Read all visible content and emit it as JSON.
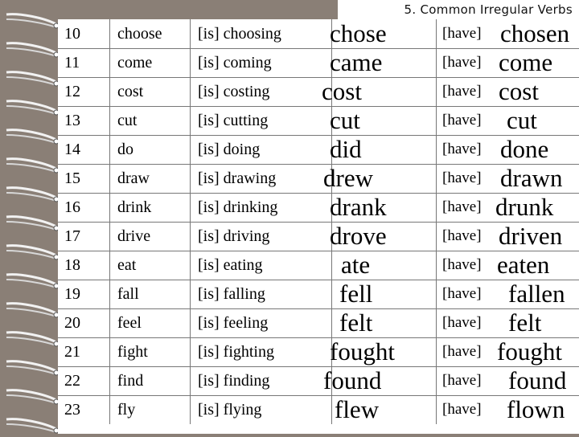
{
  "title": "5. Common Irregular Verbs",
  "have_label": "[have]",
  "rows": [
    {
      "num": "10",
      "base": "choose",
      "ing": "[is] choosing",
      "past": "chose",
      "pp": "chosen"
    },
    {
      "num": "11",
      "base": "come",
      "ing": "[is] coming",
      "past": "came",
      "pp": "come"
    },
    {
      "num": "12",
      "base": "cost",
      "ing": "[is] costing",
      "past": "cost",
      "pp": "cost"
    },
    {
      "num": "13",
      "base": "cut",
      "ing": "[is] cutting",
      "past": "cut",
      "pp": "cut"
    },
    {
      "num": "14",
      "base": "do",
      "ing": "[is] doing",
      "past": "did",
      "pp": "done"
    },
    {
      "num": "15",
      "base": "draw",
      "ing": "[is] drawing",
      "past": "drew",
      "pp": "drawn"
    },
    {
      "num": "16",
      "base": "drink",
      "ing": "[is] drinking",
      "past": "drank",
      "pp": "drunk"
    },
    {
      "num": "17",
      "base": "drive",
      "ing": "[is] driving",
      "past": "drove",
      "pp": "driven"
    },
    {
      "num": "18",
      "base": "eat",
      "ing": "[is] eating",
      "past": "ate",
      "pp": "eaten"
    },
    {
      "num": "19",
      "base": "fall",
      "ing": "[is] falling",
      "past": "fell",
      "pp": "fallen"
    },
    {
      "num": "20",
      "base": "feel",
      "ing": "[is] feeling",
      "past": "felt",
      "pp": "felt"
    },
    {
      "num": "21",
      "base": "fight",
      "ing": "[is] fighting",
      "past": "fought",
      "pp": "fought"
    },
    {
      "num": "22",
      "base": "find",
      "ing": "[is] finding",
      "past": "found",
      "pp": "found"
    },
    {
      "num": "23",
      "base": "fly",
      "ing": "[is] flying",
      "past": "flew",
      "pp": "flown"
    }
  ]
}
